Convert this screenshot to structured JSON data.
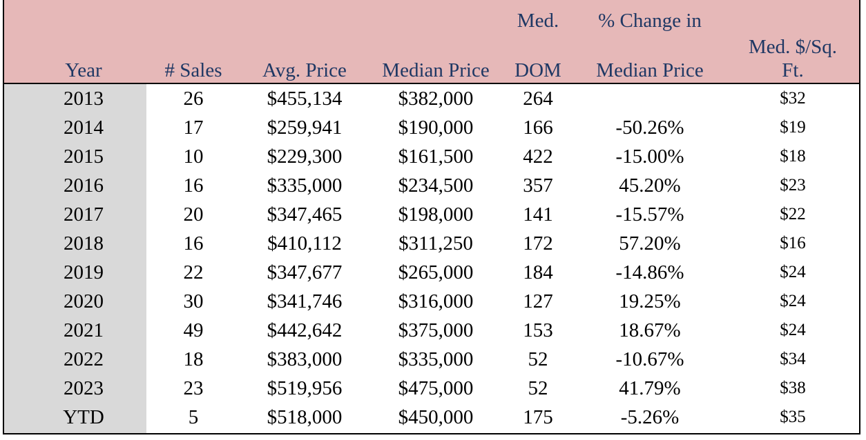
{
  "headers": {
    "year": "Year",
    "sales": "# Sales",
    "avg_price": "Avg. Price",
    "median_price": "Median Price",
    "dom_top": "Med.",
    "dom_bottom": "DOM",
    "change_top": "% Change in",
    "change_bottom": "Median Price",
    "sqft_top": "Med. $/Sq.",
    "sqft_bottom": "Ft."
  },
  "rows": [
    {
      "year": "2013",
      "sales": "26",
      "avg": "$455,134",
      "median": "$382,000",
      "dom": "264",
      "change": "",
      "sqft": "$32"
    },
    {
      "year": "2014",
      "sales": "17",
      "avg": "$259,941",
      "median": "$190,000",
      "dom": "166",
      "change": "-50.26%",
      "sqft": "$19"
    },
    {
      "year": "2015",
      "sales": "10",
      "avg": "$229,300",
      "median": "$161,500",
      "dom": "422",
      "change": "-15.00%",
      "sqft": "$18"
    },
    {
      "year": "2016",
      "sales": "16",
      "avg": "$335,000",
      "median": "$234,500",
      "dom": "357",
      "change": "45.20%",
      "sqft": "$23"
    },
    {
      "year": "2017",
      "sales": "20",
      "avg": "$347,465",
      "median": "$198,000",
      "dom": "141",
      "change": "-15.57%",
      "sqft": "$22"
    },
    {
      "year": "2018",
      "sales": "16",
      "avg": "$410,112",
      "median": "$311,250",
      "dom": "172",
      "change": "57.20%",
      "sqft": "$16"
    },
    {
      "year": "2019",
      "sales": "22",
      "avg": "$347,677",
      "median": "$265,000",
      "dom": "184",
      "change": "-14.86%",
      "sqft": "$24"
    },
    {
      "year": "2020",
      "sales": "30",
      "avg": "$341,746",
      "median": "$316,000",
      "dom": "127",
      "change": "19.25%",
      "sqft": "$24"
    },
    {
      "year": "2021",
      "sales": "49",
      "avg": "$442,642",
      "median": "$375,000",
      "dom": "153",
      "change": "18.67%",
      "sqft": "$24"
    },
    {
      "year": "2022",
      "sales": "18",
      "avg": "$383,000",
      "median": "$335,000",
      "dom": "52",
      "change": "-10.67%",
      "sqft": "$34"
    },
    {
      "year": "2023",
      "sales": "23",
      "avg": "$519,956",
      "median": "$475,000",
      "dom": "52",
      "change": "41.79%",
      "sqft": "$38"
    },
    {
      "year": "YTD",
      "sales": "5",
      "avg": "$518,000",
      "median": "$450,000",
      "dom": "175",
      "change": "-5.26%",
      "sqft": "$35"
    }
  ]
}
